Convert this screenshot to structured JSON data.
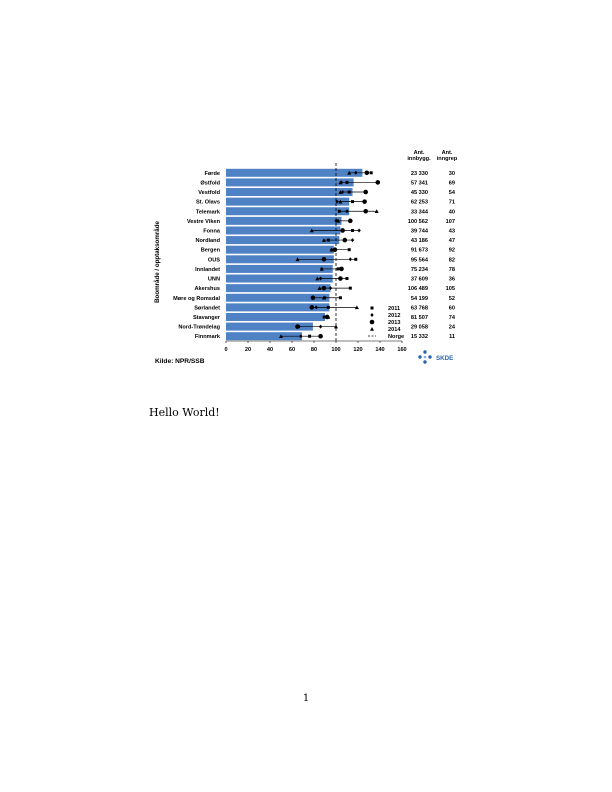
{
  "chart_data": {
    "type": "bar",
    "ylabel": "Boområde / opptaksområde",
    "xlim": [
      0,
      160
    ],
    "xticks": [
      0,
      20,
      40,
      60,
      80,
      100,
      120,
      140,
      160
    ],
    "column_headers": [
      [
        "Ant.",
        "innbygg."
      ],
      [
        "Ant.",
        "inngrep"
      ]
    ],
    "reference_line": {
      "label": "Norge",
      "value": 100
    },
    "markers": [
      {
        "year": "2011",
        "shape": "square"
      },
      {
        "year": "2012",
        "shape": "diamond-small"
      },
      {
        "year": "2013",
        "shape": "circle"
      },
      {
        "year": "2014",
        "shape": "triangle"
      }
    ],
    "rows": [
      {
        "area": "Førde",
        "bar": 124,
        "pts": [
          132,
          118,
          128,
          112
        ],
        "innbygg": "23 330",
        "inngrep": "30"
      },
      {
        "area": "Østfold",
        "bar": 116,
        "pts": [
          110,
          105,
          138,
          104
        ],
        "innbygg": "57 341",
        "inngrep": "69"
      },
      {
        "area": "Vestfold",
        "bar": 115,
        "pts": [
          112,
          106,
          127,
          104
        ],
        "innbygg": "45 330",
        "inngrep": "54"
      },
      {
        "area": "St. Olavs",
        "bar": 112,
        "pts": [
          115,
          101,
          126,
          104
        ],
        "innbygg": "62 253",
        "inngrep": "71"
      },
      {
        "area": "Telemark",
        "bar": 112,
        "pts": [
          103,
          110,
          127,
          137
        ],
        "innbygg": "33 344",
        "inngrep": "40"
      },
      {
        "area": "Vestre Viken",
        "bar": 105,
        "pts": [
          101,
          100,
          113,
          102
        ],
        "innbygg": "100 562",
        "inngrep": "107"
      },
      {
        "area": "Fonna",
        "bar": 104,
        "pts": [
          115,
          121,
          106,
          78
        ],
        "innbygg": "39 744",
        "inngrep": "43"
      },
      {
        "area": "Nordland",
        "bar": 103,
        "pts": [
          93,
          115,
          108,
          89
        ],
        "innbygg": "43 186",
        "inngrep": "47"
      },
      {
        "area": "Bergen",
        "bar": 98,
        "pts": [
          112,
          96,
          99,
          96
        ],
        "innbygg": "91 673",
        "inngrep": "92"
      },
      {
        "area": "OUS",
        "bar": 98,
        "pts": [
          118,
          113,
          89,
          65
        ],
        "innbygg": "95 564",
        "inngrep": "82"
      },
      {
        "area": "Innlandet",
        "bar": 97,
        "pts": [
          102,
          87,
          105,
          87
        ],
        "innbygg": "75 234",
        "inngrep": "78"
      },
      {
        "area": "UNN",
        "bar": 97,
        "pts": [
          110,
          86,
          104,
          83
        ],
        "innbygg": "37 609",
        "inngrep": "36"
      },
      {
        "area": "Akershus",
        "bar": 95,
        "pts": [
          113,
          95,
          89,
          85
        ],
        "innbygg": "106 489",
        "inngrep": "105"
      },
      {
        "area": "Møre og Romsdal",
        "bar": 94,
        "pts": [
          104,
          90,
          79,
          89
        ],
        "innbygg": "54 199",
        "inngrep": "52"
      },
      {
        "area": "Sørlandet",
        "bar": 94,
        "pts": [
          93,
          82,
          78,
          119
        ],
        "innbygg": "63 768",
        "inngrep": "60"
      },
      {
        "area": "Stavanger",
        "bar": 90,
        "pts": [
          91,
          89,
          92,
          93
        ],
        "innbygg": "81 507",
        "inngrep": "74"
      },
      {
        "area": "Nord-Trøndelag",
        "bar": 79,
        "pts": [
          66,
          86,
          65,
          100
        ],
        "innbygg": "29 058",
        "inngrep": "24"
      },
      {
        "area": "Finnmark",
        "bar": 69,
        "pts": [
          76,
          68,
          86,
          50
        ],
        "innbygg": "15 332",
        "inngrep": "11"
      }
    ],
    "bar_color": "#4f81c5"
  },
  "source_label": "Kilde: NPR/SSB",
  "logo_text": "SKDE",
  "body_text": "Hello World!",
  "page_number": "1"
}
